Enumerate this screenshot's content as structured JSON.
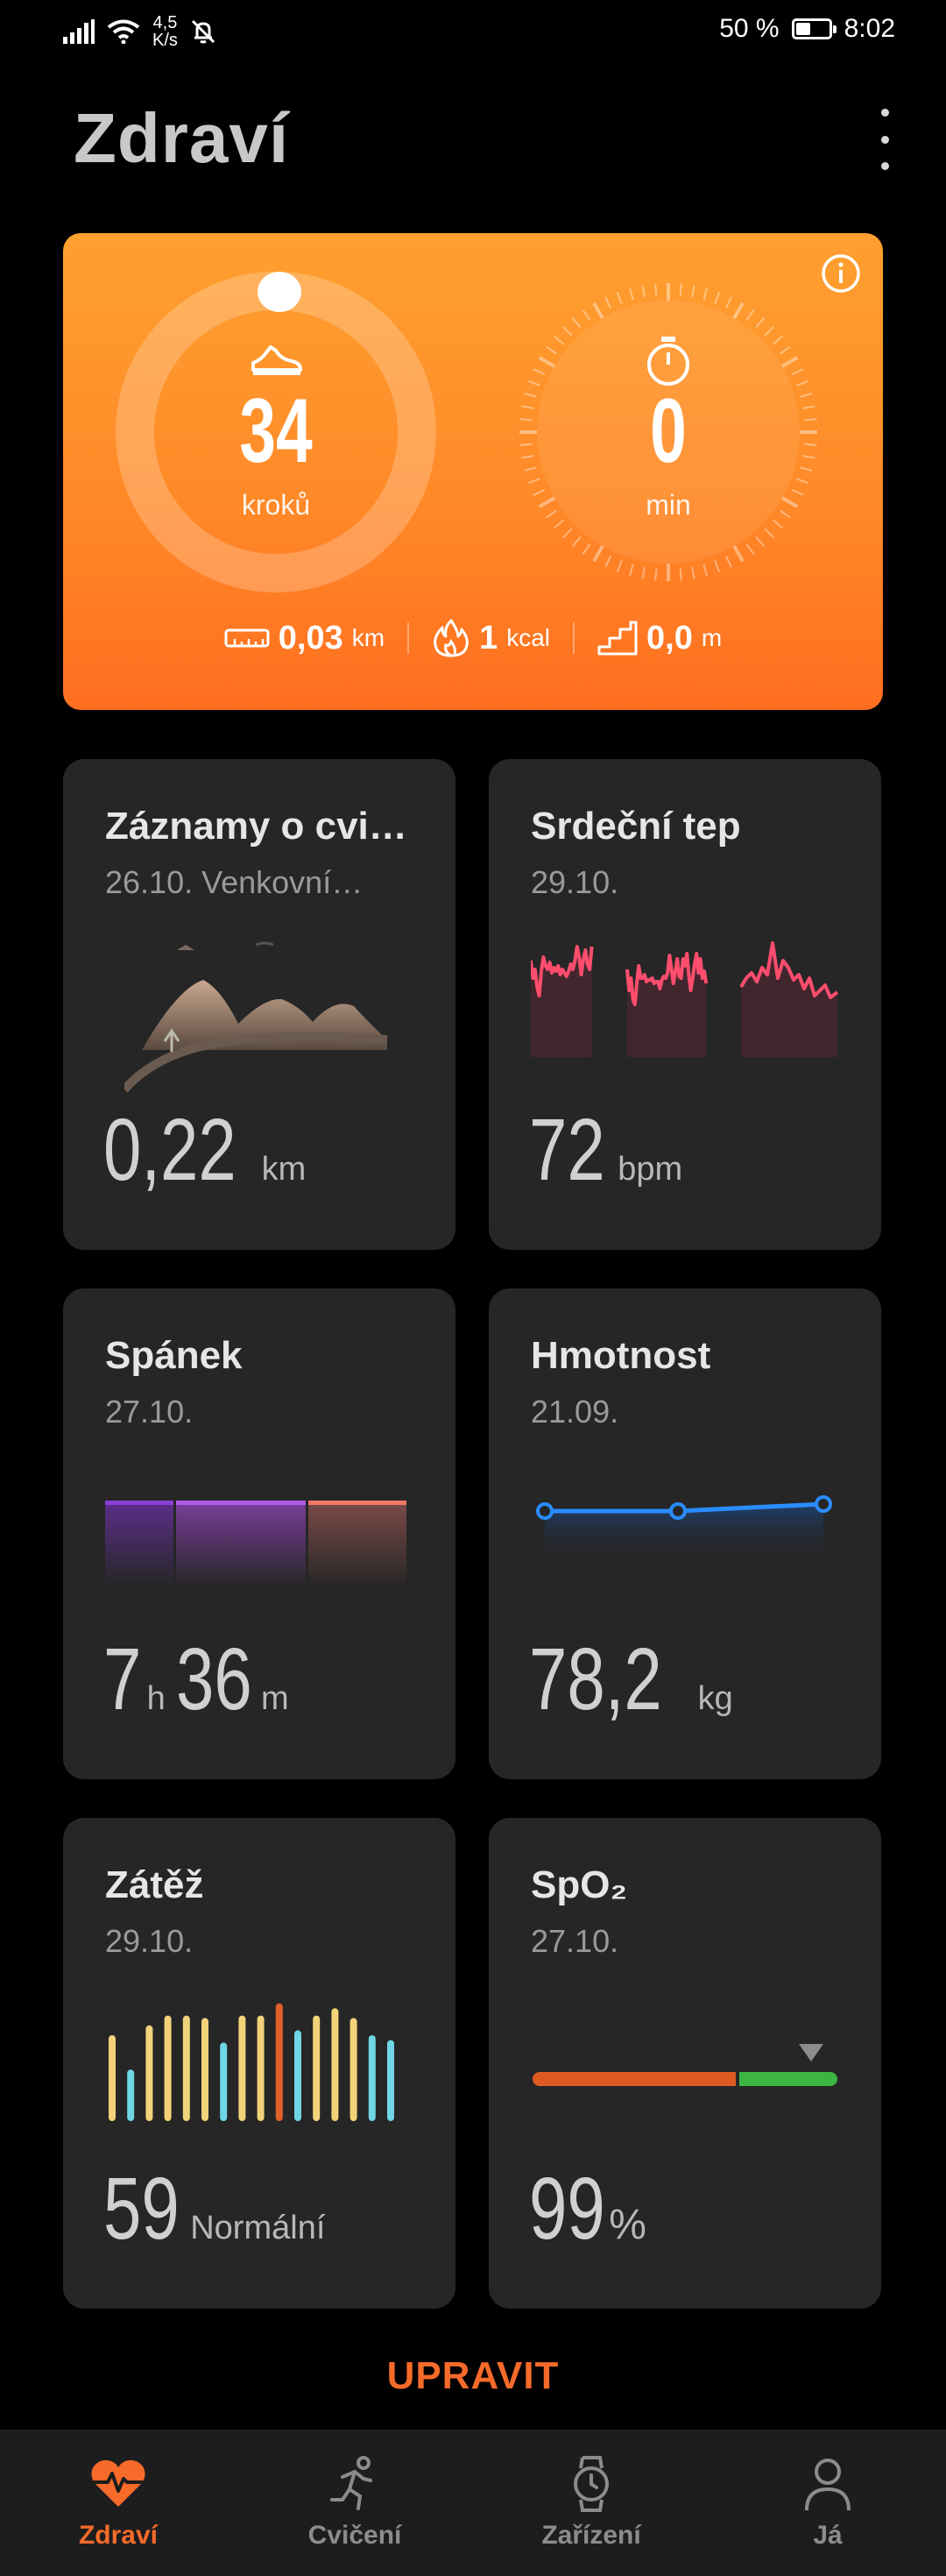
{
  "status_bar": {
    "net_speed_value": "4,5",
    "net_speed_unit": "K/s",
    "battery_percent": "50 %",
    "battery_level": 0.5,
    "time": "8:02"
  },
  "header": {
    "title": "Zdraví"
  },
  "activity": {
    "steps": {
      "value": "34",
      "unit": "kroků"
    },
    "minutes": {
      "value": "0",
      "unit": "min"
    },
    "distance": {
      "value": "0,03",
      "unit": "km"
    },
    "calories": {
      "value": "1",
      "unit": "kcal"
    },
    "climb": {
      "value": "0,0",
      "unit": "m"
    },
    "accent": "#ff8a28"
  },
  "tiles": {
    "workouts": {
      "title": "Záznamy o cvi…",
      "subtitle": "26.10. Venkovní…",
      "value": "0,22",
      "unit": "km"
    },
    "heart_rate": {
      "title": "Srdeční tep",
      "subtitle": "29.10.",
      "value": "72",
      "unit": "bpm",
      "line_color": "#ff4d6d"
    },
    "sleep": {
      "title": "Spánek",
      "subtitle": "27.10.",
      "hours": "7",
      "hours_unit": "h",
      "minutes": "36",
      "minutes_unit": "m"
    },
    "weight": {
      "title": "Hmotnost",
      "subtitle": "21.09.",
      "value": "78,2",
      "unit": "kg",
      "line_color": "#2a8cff"
    },
    "stress": {
      "title": "Zátěž",
      "subtitle": "29.10.",
      "value": "59",
      "unit": "Normální"
    },
    "spo2": {
      "title": "SpO₂",
      "subtitle": "27.10.",
      "value": "99",
      "unit": "%",
      "colors": [
        "#e05a24",
        "#3db542"
      ]
    }
  },
  "edit_label": "UPRAVIT",
  "bottom_nav": {
    "items": [
      {
        "label": "Zdraví",
        "icon": "heart-pulse-icon",
        "active": true
      },
      {
        "label": "Cvičení",
        "icon": "runner-icon",
        "active": false
      },
      {
        "label": "Zařízení",
        "icon": "watch-icon",
        "active": false
      },
      {
        "label": "Já",
        "icon": "person-icon",
        "active": false
      }
    ],
    "active_color": "#f66a2a"
  }
}
